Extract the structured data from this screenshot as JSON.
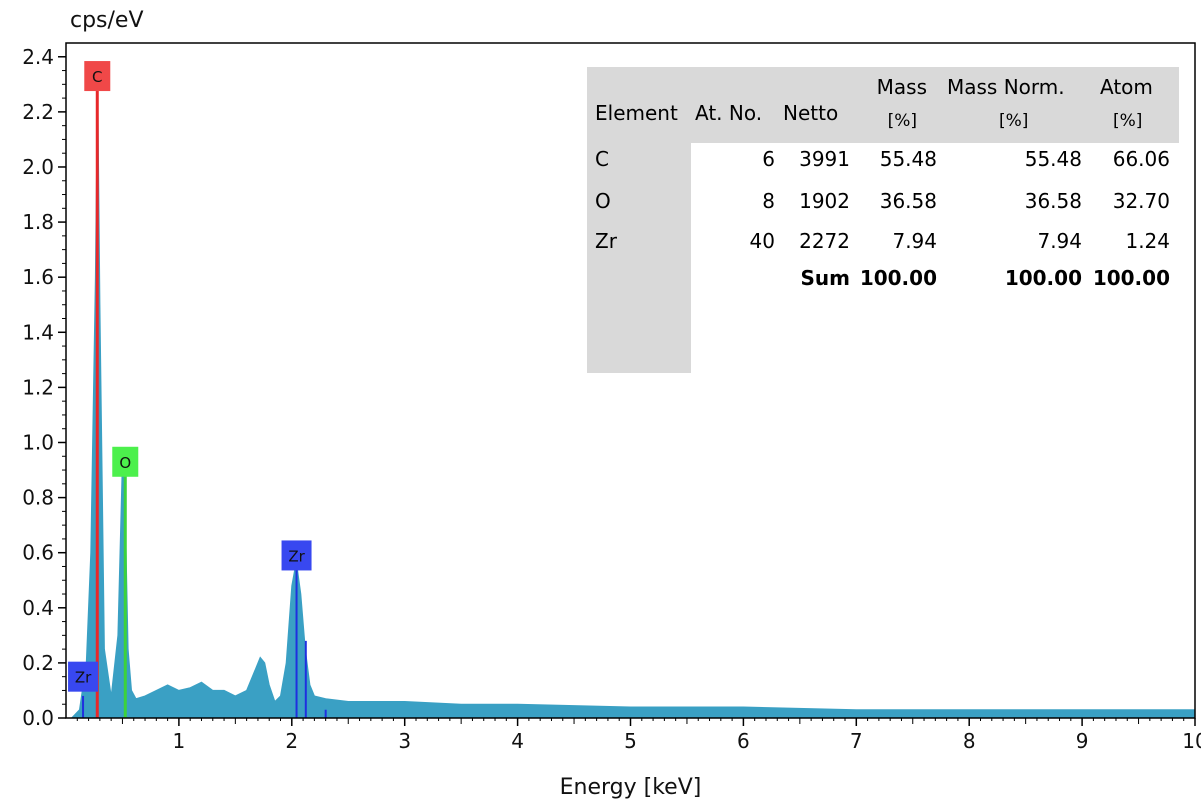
{
  "chart_data": {
    "type": "line",
    "ylabel": "cps/eV",
    "xlabel": "Energy [keV]",
    "xlim": [
      0,
      10
    ],
    "ylim": [
      0,
      2.45
    ],
    "x_ticks": [
      "1",
      "2",
      "3",
      "4",
      "5",
      "6",
      "7",
      "8",
      "9",
      "10"
    ],
    "y_ticks": [
      "0.0",
      "0.2",
      "0.4",
      "0.6",
      "0.8",
      "1.0",
      "1.2",
      "1.4",
      "1.6",
      "1.8",
      "2.0",
      "2.2",
      "2.4"
    ],
    "spectrum_color": "#3aa0c4",
    "spectrum": {
      "x": [
        0.05,
        0.12,
        0.18,
        0.22,
        0.26,
        0.28,
        0.3,
        0.34,
        0.4,
        0.46,
        0.5,
        0.52,
        0.55,
        0.58,
        0.62,
        0.7,
        0.8,
        0.9,
        1.0,
        1.1,
        1.2,
        1.3,
        1.4,
        1.5,
        1.6,
        1.68,
        1.72,
        1.76,
        1.8,
        1.85,
        1.9,
        1.95,
        2.0,
        2.04,
        2.08,
        2.12,
        2.16,
        2.2,
        2.3,
        2.5,
        3.0,
        3.5,
        4.0,
        5.0,
        6.0,
        7.0,
        8.0,
        9.0,
        10.0
      ],
      "y": [
        0.0,
        0.03,
        0.2,
        0.6,
        1.6,
        2.35,
        1.5,
        0.25,
        0.08,
        0.3,
        0.95,
        0.85,
        0.25,
        0.1,
        0.07,
        0.08,
        0.1,
        0.12,
        0.1,
        0.11,
        0.13,
        0.1,
        0.1,
        0.08,
        0.1,
        0.18,
        0.22,
        0.2,
        0.12,
        0.06,
        0.08,
        0.2,
        0.48,
        0.57,
        0.45,
        0.25,
        0.12,
        0.08,
        0.07,
        0.06,
        0.06,
        0.05,
        0.05,
        0.04,
        0.04,
        0.03,
        0.03,
        0.03,
        0.03
      ]
    },
    "element_lines": [
      {
        "element": "C",
        "energy": 0.277,
        "height": 2.35,
        "color": "#e8282a"
      },
      {
        "element": "O",
        "energy": 0.525,
        "height": 0.95,
        "color": "#3cd23c"
      },
      {
        "element": "Zr",
        "energy": 2.042,
        "height": 0.57,
        "color": "#1f2fe0"
      },
      {
        "element": "Zr",
        "energy": 2.124,
        "height": 0.28,
        "color": "#1f2fe0"
      },
      {
        "element": "Zr",
        "energy": 2.3,
        "height": 0.03,
        "color": "#1f2fe0"
      },
      {
        "element": "Zr",
        "energy": 0.151,
        "height": 0.08,
        "color": "#1f2fe0"
      }
    ],
    "peak_labels": [
      {
        "text": "C",
        "energy": 0.277,
        "value": 2.33,
        "color": "#f04848"
      },
      {
        "text": "O",
        "energy": 0.525,
        "value": 0.93,
        "color": "#4cf04c"
      },
      {
        "text": "Zr",
        "energy": 2.042,
        "value": 0.59,
        "color": "#3848f0"
      },
      {
        "text": "Zr",
        "energy": 0.151,
        "value": 0.15,
        "color": "#3848f0"
      }
    ]
  },
  "table": {
    "headers": {
      "element": "Element",
      "at_no": "At. No.",
      "netto": "Netto",
      "mass": "Mass",
      "mass_unit": "[%]",
      "mass_norm": "Mass Norm.",
      "mass_norm_unit": "[%]",
      "atom": "Atom",
      "atom_unit": "[%]"
    },
    "rows": [
      {
        "element": "C",
        "at_no": "6",
        "netto": "3991",
        "mass": "55.48",
        "mass_norm": "55.48",
        "atom": "66.06"
      },
      {
        "element": "O",
        "at_no": "8",
        "netto": "1902",
        "mass": "36.58",
        "mass_norm": "36.58",
        "atom": "32.70"
      },
      {
        "element": "Zr",
        "at_no": "40",
        "netto": "2272",
        "mass": "7.94",
        "mass_norm": "7.94",
        "atom": "1.24"
      }
    ],
    "sum": {
      "label": "Sum",
      "mass": "100.00",
      "mass_norm": "100.00",
      "atom": "100.00"
    }
  }
}
